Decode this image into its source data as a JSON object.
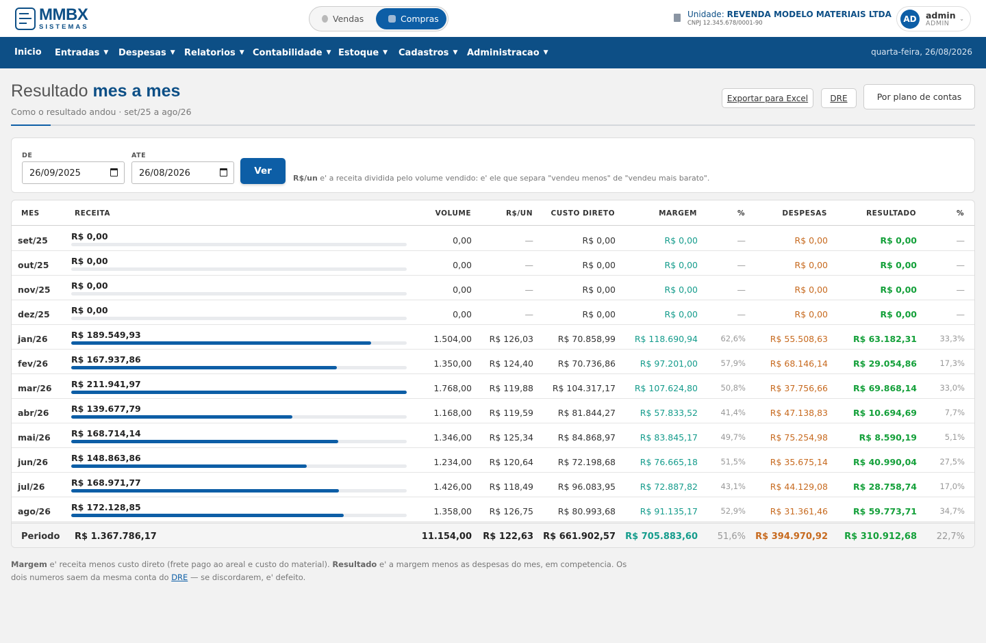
{
  "brand": {
    "name": "MMBX",
    "sub": "SISTEMAS"
  },
  "mode_toggle": {
    "vendas": "Vendas",
    "compras": "Compras",
    "active": "Compras"
  },
  "unit": {
    "label": "Unidade:",
    "name": "REVENDA MODELO MATERIAIS LTDA",
    "cnpj": "CNPJ 12.345.678/0001-90"
  },
  "user": {
    "initials": "AD",
    "name": "admin",
    "role": "ADMIN"
  },
  "nav": {
    "items": [
      {
        "label": "Inicio",
        "caret": false
      },
      {
        "label": "Entradas",
        "caret": true
      },
      {
        "label": "Despesas",
        "caret": true
      },
      {
        "label": "Relatorios",
        "caret": true
      },
      {
        "label": "Contabilidade",
        "caret": true
      },
      {
        "label": "Estoque",
        "caret": true
      },
      {
        "label": "Cadastros",
        "caret": true
      },
      {
        "label": "Administracao",
        "caret": true
      }
    ],
    "date": "quarta-feira, 26/08/2026"
  },
  "page": {
    "title_light": "Resultado",
    "title_bold": "mes a mes",
    "subtitle": "Como o resultado andou · set/25 a ago/26",
    "actions": {
      "export": "Exportar para Excel",
      "dre": "DRE",
      "plano": "Por plano de contas"
    }
  },
  "filter": {
    "de_label": "DE",
    "de_value": "26/09/2025",
    "ate_label": "ATE",
    "ate_value": "26/08/2026",
    "ver_label": "Ver",
    "hint_bold": "R$/un",
    "hint_text": " e' a receita dividida pelo volume vendido: e' ele que separa \"vendeu menos\" de \"vendeu mais barato\"."
  },
  "table": {
    "headers": {
      "mes": "MES",
      "receita": "RECEITA",
      "volume": "VOLUME",
      "rsun": "R$/UN",
      "custo": "CUSTO DIRETO",
      "margem": "MARGEM",
      "pct1": "%",
      "despesas": "DESPESAS",
      "resultado": "RESULTADO",
      "pct2": "%"
    },
    "rows": [
      {
        "mes": "set/25",
        "receita": "R$ 0,00",
        "bar": 0,
        "volume": "0,00",
        "rsun": "—",
        "custo": "R$ 0,00",
        "margem": "R$ 0,00",
        "pct1": "—",
        "despesas": "R$ 0,00",
        "resultado": "R$ 0,00",
        "pct2": "—"
      },
      {
        "mes": "out/25",
        "receita": "R$ 0,00",
        "bar": 0,
        "volume": "0,00",
        "rsun": "—",
        "custo": "R$ 0,00",
        "margem": "R$ 0,00",
        "pct1": "—",
        "despesas": "R$ 0,00",
        "resultado": "R$ 0,00",
        "pct2": "—"
      },
      {
        "mes": "nov/25",
        "receita": "R$ 0,00",
        "bar": 0,
        "volume": "0,00",
        "rsun": "—",
        "custo": "R$ 0,00",
        "margem": "R$ 0,00",
        "pct1": "—",
        "despesas": "R$ 0,00",
        "resultado": "R$ 0,00",
        "pct2": "—"
      },
      {
        "mes": "dez/25",
        "receita": "R$ 0,00",
        "bar": 0,
        "volume": "0,00",
        "rsun": "—",
        "custo": "R$ 0,00",
        "margem": "R$ 0,00",
        "pct1": "—",
        "despesas": "R$ 0,00",
        "resultado": "R$ 0,00",
        "pct2": "—"
      },
      {
        "mes": "jan/26",
        "receita": "R$ 189.549,93",
        "bar": 0.894,
        "volume": "1.504,00",
        "rsun": "R$ 126,03",
        "custo": "R$ 70.858,99",
        "margem": "R$ 118.690,94",
        "pct1": "62,6%",
        "despesas": "R$ 55.508,63",
        "resultado": "R$ 63.182,31",
        "pct2": "33,3%"
      },
      {
        "mes": "fev/26",
        "receita": "R$ 167.937,86",
        "bar": 0.792,
        "volume": "1.350,00",
        "rsun": "R$ 124,40",
        "custo": "R$ 70.736,86",
        "margem": "R$ 97.201,00",
        "pct1": "57,9%",
        "despesas": "R$ 68.146,14",
        "resultado": "R$ 29.054,86",
        "pct2": "17,3%"
      },
      {
        "mes": "mar/26",
        "receita": "R$ 211.941,97",
        "bar": 1.0,
        "volume": "1.768,00",
        "rsun": "R$ 119,88",
        "custo": "R$ 104.317,17",
        "margem": "R$ 107.624,80",
        "pct1": "50,8%",
        "despesas": "R$ 37.756,66",
        "resultado": "R$ 69.868,14",
        "pct2": "33,0%"
      },
      {
        "mes": "abr/26",
        "receita": "R$ 139.677,79",
        "bar": 0.659,
        "volume": "1.168,00",
        "rsun": "R$ 119,59",
        "custo": "R$ 81.844,27",
        "margem": "R$ 57.833,52",
        "pct1": "41,4%",
        "despesas": "R$ 47.138,83",
        "resultado": "R$ 10.694,69",
        "pct2": "7,7%"
      },
      {
        "mes": "mai/26",
        "receita": "R$ 168.714,14",
        "bar": 0.796,
        "volume": "1.346,00",
        "rsun": "R$ 125,34",
        "custo": "R$ 84.868,97",
        "margem": "R$ 83.845,17",
        "pct1": "49,7%",
        "despesas": "R$ 75.254,98",
        "resultado": "R$ 8.590,19",
        "pct2": "5,1%"
      },
      {
        "mes": "jun/26",
        "receita": "R$ 148.863,86",
        "bar": 0.702,
        "volume": "1.234,00",
        "rsun": "R$ 120,64",
        "custo": "R$ 72.198,68",
        "margem": "R$ 76.665,18",
        "pct1": "51,5%",
        "despesas": "R$ 35.675,14",
        "resultado": "R$ 40.990,04",
        "pct2": "27,5%"
      },
      {
        "mes": "jul/26",
        "receita": "R$ 168.971,77",
        "bar": 0.797,
        "volume": "1.426,00",
        "rsun": "R$ 118,49",
        "custo": "R$ 96.083,95",
        "margem": "R$ 72.887,82",
        "pct1": "43,1%",
        "despesas": "R$ 44.129,08",
        "resultado": "R$ 28.758,74",
        "pct2": "17,0%"
      },
      {
        "mes": "ago/26",
        "receita": "R$ 172.128,85",
        "bar": 0.812,
        "volume": "1.358,00",
        "rsun": "R$ 126,75",
        "custo": "R$ 80.993,68",
        "margem": "R$ 91.135,17",
        "pct1": "52,9%",
        "despesas": "R$ 31.361,46",
        "resultado": "R$ 59.773,71",
        "pct2": "34,7%"
      }
    ],
    "total": {
      "label": "Periodo",
      "receita": "R$ 1.367.786,17",
      "volume": "11.154,00",
      "rsun": "R$ 122,63",
      "custo": "R$ 661.902,57",
      "margem": "R$ 705.883,60",
      "pct1": "51,6%",
      "despesas": "R$ 394.970,92",
      "resultado": "R$ 310.912,68",
      "pct2": "22,7%"
    }
  },
  "note": {
    "b1": "Margem",
    "t1": " e' receita menos custo direto (frete pago ao areal e custo do material). ",
    "b2": "Resultado",
    "t2": " e' a margem menos as despesas do mes, em competencia. Os dois numeros saem da mesma conta do ",
    "link": "DRE",
    "t3": " — se discordarem, e' defeito."
  },
  "colors": {
    "primary": "#0d4f86",
    "accent": "#0d5ea6",
    "margem": "#159c8c",
    "despesas": "#c76a1f",
    "resultado": "#14a03a"
  }
}
